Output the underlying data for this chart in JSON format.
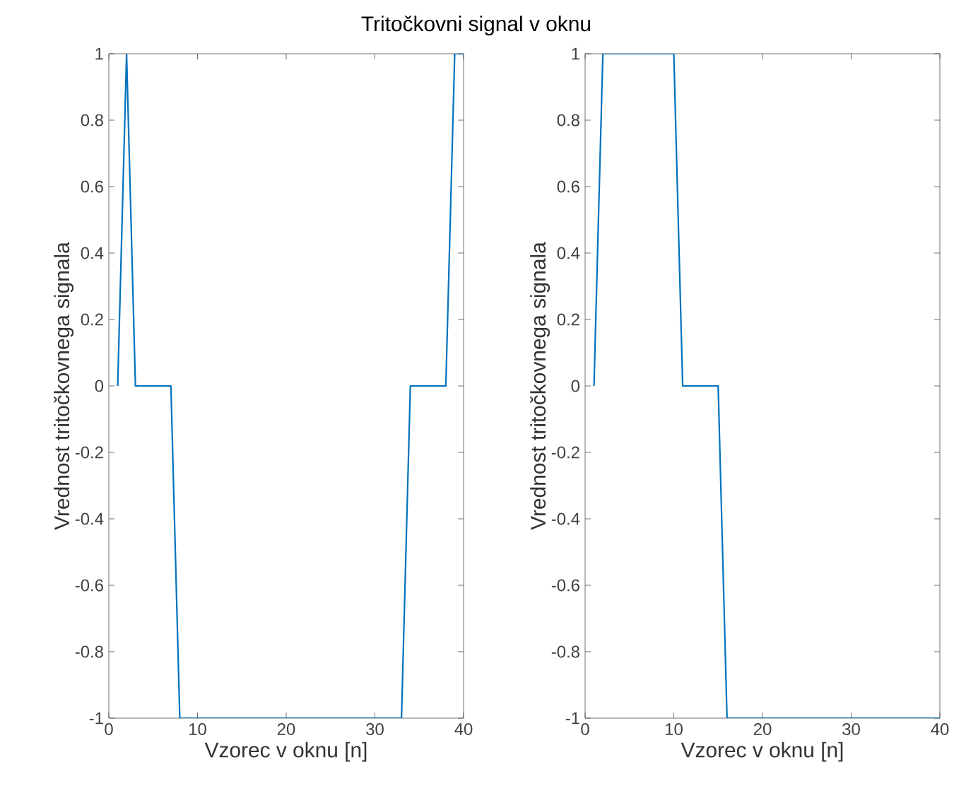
{
  "chart_data": [
    {
      "type": "line",
      "title": "Tritočkovni signal v oknu",
      "xlabel": "Vzorec v oknu [n]",
      "ylabel": "Vrednost tritočkovnega signala",
      "x": [
        1,
        2,
        3,
        7,
        8,
        33,
        34,
        38,
        39,
        40
      ],
      "series": [
        {
          "color": "#0072bd",
          "values": [
            0,
            1,
            0,
            0,
            -1,
            -1,
            0,
            0,
            1,
            1
          ]
        }
      ],
      "xlim": [
        0,
        40
      ],
      "xticks": [
        0,
        10,
        20,
        30,
        40
      ],
      "ylim": [
        -1,
        1
      ],
      "yticks": [
        -1,
        -0.8,
        -0.6,
        -0.4,
        -0.2,
        0,
        0.2,
        0.4,
        0.6,
        0.8,
        1
      ]
    },
    {
      "type": "line",
      "xlabel": "Vzorec v oknu [n]",
      "ylabel": "Vrednost tritočkovnega signala",
      "x": [
        1,
        2,
        10,
        11,
        15,
        16,
        40
      ],
      "series": [
        {
          "color": "#0072bd",
          "values": [
            0,
            1,
            1,
            0,
            0,
            -1,
            -1
          ]
        }
      ],
      "xlim": [
        0,
        40
      ],
      "xticks": [
        0,
        10,
        20,
        30,
        40
      ],
      "ylim": [
        -1,
        1
      ],
      "yticks": [
        -1,
        -0.8,
        -0.6,
        -0.4,
        -0.2,
        0,
        0.2,
        0.4,
        0.6,
        0.8,
        1
      ]
    }
  ]
}
